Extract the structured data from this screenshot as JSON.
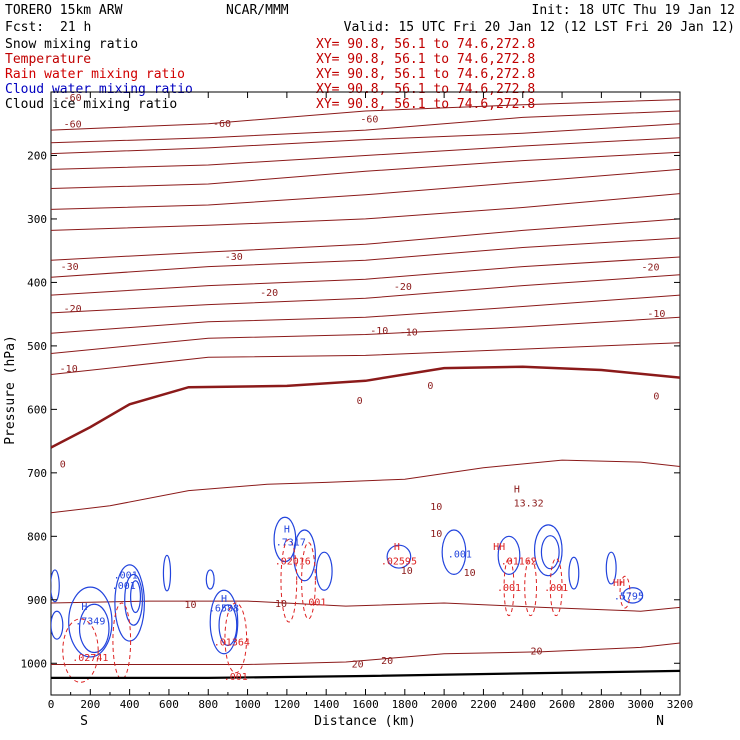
{
  "header": {
    "model": "TORERO  15km ARW",
    "center": "NCAR/MMM",
    "init": "Init: 18 UTC Thu 19 Jan 12",
    "fcst_label": "Fcst:",
    "fcst_value": "21 h",
    "valid": "Valid: 15 UTC Fri 20 Jan 12 (12 LST Fri 20 Jan 12)"
  },
  "fields": [
    {
      "name": "Snow mixing ratio",
      "xy": "XY=  90.8, 56.1 to  74.6,272.8",
      "color": "#000000"
    },
    {
      "name": "Temperature",
      "xy": "XY=  90.8, 56.1 to  74.6,272.8",
      "color": "#c00000"
    },
    {
      "name": "Rain water mixing ratio",
      "xy": "XY=  90.8, 56.1 to  74.6,272.8",
      "color": "#d00000"
    },
    {
      "name": "Cloud water mixing ratio",
      "xy": "XY=  90.8, 56.1 to  74.6,272.8",
      "color": "#0000c0"
    },
    {
      "name": "Cloud ice mixing ratio",
      "xy": "XY=  90.8, 56.1 to  74.6,272.8",
      "color": "#000000"
    }
  ],
  "colors": {
    "temperature": "#8b1a1a",
    "rain": "#dd2222",
    "cloud_water": "#2244dd",
    "terrain": "#000000"
  },
  "chart_data": {
    "type": "cross-section contour",
    "xlabel": "Distance (km)",
    "ylabel": "Pressure (hPa)",
    "xlim": [
      0,
      3200
    ],
    "ylim": [
      1050,
      100
    ],
    "x_ticks": [
      0,
      200,
      400,
      600,
      800,
      1000,
      1200,
      1400,
      1600,
      1800,
      2000,
      2200,
      2400,
      2600,
      2800,
      3000,
      3200
    ],
    "y_ticks": [
      200,
      300,
      400,
      500,
      600,
      700,
      800,
      900,
      1000
    ],
    "x_end_labels": {
      "left": "S",
      "right": "N"
    },
    "temperature_contours": [
      {
        "value": "-60",
        "points": [
          [
            0,
            160
          ],
          [
            800,
            150
          ],
          [
            1600,
            130
          ],
          [
            2400,
            120
          ],
          [
            3200,
            112
          ]
        ]
      },
      {
        "value": "-60",
        "points": [
          [
            0,
            180
          ],
          [
            800,
            172
          ],
          [
            1600,
            160
          ],
          [
            2400,
            140
          ],
          [
            3200,
            130
          ]
        ]
      },
      {
        "value": "-60",
        "points": [
          [
            0,
            197
          ],
          [
            800,
            188
          ],
          [
            1600,
            175
          ],
          [
            2400,
            165
          ],
          [
            3200,
            150
          ]
        ]
      },
      {
        "value": "-60",
        "points": [
          [
            0,
            222
          ],
          [
            800,
            215
          ],
          [
            1600,
            200
          ],
          [
            2400,
            185
          ],
          [
            3200,
            172
          ]
        ]
      },
      {
        "value": "-60",
        "points": [
          [
            0,
            252
          ],
          [
            800,
            245
          ],
          [
            1600,
            225
          ],
          [
            2400,
            208
          ],
          [
            3200,
            195
          ]
        ]
      },
      {
        "value": "-50",
        "points": [
          [
            0,
            285
          ],
          [
            800,
            278
          ],
          [
            1600,
            262
          ],
          [
            2400,
            242
          ],
          [
            3200,
            222
          ]
        ]
      },
      {
        "value": "-40",
        "points": [
          [
            0,
            318
          ],
          [
            800,
            310
          ],
          [
            1600,
            300
          ],
          [
            2400,
            282
          ],
          [
            3200,
            260
          ]
        ]
      },
      {
        "value": "-30",
        "points": [
          [
            0,
            365
          ],
          [
            800,
            352
          ],
          [
            1600,
            340
          ],
          [
            2400,
            318
          ],
          [
            3200,
            300
          ]
        ]
      },
      {
        "value": "-30",
        "points": [
          [
            0,
            392
          ],
          [
            800,
            375
          ],
          [
            1600,
            365
          ],
          [
            2400,
            345
          ],
          [
            3200,
            330
          ]
        ]
      },
      {
        "value": "-20",
        "points": [
          [
            0,
            420
          ],
          [
            800,
            405
          ],
          [
            1600,
            395
          ],
          [
            2400,
            375
          ],
          [
            3200,
            360
          ]
        ]
      },
      {
        "value": "-20",
        "points": [
          [
            0,
            448
          ],
          [
            800,
            435
          ],
          [
            1600,
            425
          ],
          [
            2400,
            405
          ],
          [
            3200,
            388
          ]
        ]
      },
      {
        "value": "-10",
        "points": [
          [
            0,
            480
          ],
          [
            800,
            462
          ],
          [
            1600,
            455
          ],
          [
            2400,
            438
          ],
          [
            3200,
            420
          ]
        ]
      },
      {
        "value": "-10",
        "points": [
          [
            0,
            512
          ],
          [
            800,
            488
          ],
          [
            1600,
            482
          ],
          [
            2400,
            470
          ],
          [
            3200,
            455
          ]
        ]
      },
      {
        "value": "-10",
        "points": [
          [
            0,
            545
          ],
          [
            800,
            518
          ],
          [
            1600,
            515
          ],
          [
            2400,
            505
          ],
          [
            3200,
            495
          ]
        ]
      },
      {
        "value": "0",
        "points": [
          [
            0,
            660
          ],
          [
            200,
            628
          ],
          [
            400,
            592
          ],
          [
            700,
            565
          ],
          [
            1200,
            563
          ],
          [
            1600,
            555
          ],
          [
            2000,
            535
          ],
          [
            2400,
            533
          ],
          [
            2800,
            538
          ],
          [
            3200,
            550
          ]
        ]
      },
      {
        "value": "10",
        "points": [
          [
            0,
            763
          ],
          [
            300,
            752
          ],
          [
            700,
            728
          ],
          [
            1100,
            718
          ],
          [
            1400,
            715
          ],
          [
            1800,
            710
          ],
          [
            2200,
            692
          ],
          [
            2600,
            680
          ],
          [
            3000,
            683
          ],
          [
            3200,
            690
          ]
        ]
      },
      {
        "value": "10",
        "points": [
          [
            0,
            905
          ],
          [
            500,
            902
          ],
          [
            1000,
            902
          ],
          [
            1500,
            910
          ],
          [
            2000,
            905
          ],
          [
            2500,
            912
          ],
          [
            3000,
            918
          ],
          [
            3200,
            912
          ]
        ]
      },
      {
        "value": "20",
        "points": [
          [
            0,
            1002
          ],
          [
            1000,
            1002
          ],
          [
            1500,
            998
          ],
          [
            2000,
            985
          ],
          [
            2500,
            982
          ],
          [
            3000,
            975
          ],
          [
            3200,
            968
          ]
        ]
      }
    ],
    "terrain_pressure": [
      [
        0,
        1023
      ],
      [
        800,
        1023
      ],
      [
        1600,
        1020
      ],
      [
        2400,
        1016
      ],
      [
        3200,
        1012
      ]
    ],
    "contour_labels": [
      {
        "text": "-60",
        "x": 110,
        "y": 108,
        "color": "temperature"
      },
      {
        "text": "-60",
        "x": 110,
        "y": 150,
        "color": "temperature"
      },
      {
        "text": "-60",
        "x": 870,
        "y": 149,
        "color": "temperature"
      },
      {
        "text": "-60",
        "x": 1620,
        "y": 142,
        "color": "temperature"
      },
      {
        "text": "-30",
        "x": 95,
        "y": 374,
        "color": "temperature"
      },
      {
        "text": "-30",
        "x": 930,
        "y": 358,
        "color": "temperature"
      },
      {
        "text": "-20",
        "x": 3050,
        "y": 375,
        "color": "temperature"
      },
      {
        "text": "-20",
        "x": 110,
        "y": 440,
        "color": "temperature"
      },
      {
        "text": "-20",
        "x": 1110,
        "y": 415,
        "color": "temperature"
      },
      {
        "text": "-20",
        "x": 1790,
        "y": 406,
        "color": "temperature"
      },
      {
        "text": "-10",
        "x": 3080,
        "y": 448,
        "color": "temperature"
      },
      {
        "text": "-10",
        "x": 1670,
        "y": 475,
        "color": "temperature"
      },
      {
        "text": "-10",
        "x": 1820,
        "y": 477,
        "color": "temperature"
      },
      {
        "text": "-10",
        "x": 90,
        "y": 535,
        "color": "temperature"
      },
      {
        "text": "0",
        "x": 1930,
        "y": 562,
        "color": "temperature"
      },
      {
        "text": "0",
        "x": 1570,
        "y": 585,
        "color": "temperature"
      },
      {
        "text": "0",
        "x": 3080,
        "y": 578,
        "color": "temperature"
      },
      {
        "text": "0",
        "x": 60,
        "y": 685,
        "color": "temperature"
      },
      {
        "text": "10",
        "x": 1960,
        "y": 752,
        "color": "temperature"
      },
      {
        "text": "10",
        "x": 1960,
        "y": 795,
        "color": "temperature"
      },
      {
        "text": "10",
        "x": 1810,
        "y": 853,
        "color": "temperature"
      },
      {
        "text": "10",
        "x": 2130,
        "y": 856,
        "color": "temperature"
      },
      {
        "text": "10",
        "x": 710,
        "y": 907,
        "color": "temperature"
      },
      {
        "text": "10",
        "x": 1170,
        "y": 905,
        "color": "temperature"
      },
      {
        "text": "20",
        "x": 1560,
        "y": 1000,
        "color": "temperature"
      },
      {
        "text": "20",
        "x": 1710,
        "y": 995,
        "color": "temperature"
      },
      {
        "text": "20",
        "x": 2470,
        "y": 980,
        "color": "temperature"
      },
      {
        "text": "H",
        "x": 2370,
        "y": 725,
        "color": "temperature"
      },
      {
        "text": "13.32",
        "x": 2430,
        "y": 747,
        "color": "temperature"
      },
      {
        "text": "H",
        "x": 1200,
        "y": 788,
        "color": "cloud_water"
      },
      {
        "text": ".7317",
        "x": 1220,
        "y": 808,
        "color": "cloud_water"
      },
      {
        "text": ".02016",
        "x": 1230,
        "y": 838,
        "color": "rain"
      },
      {
        "text": ".001",
        "x": 380,
        "y": 860,
        "color": "cloud_water"
      },
      {
        "text": ".001",
        "x": 2080,
        "y": 827,
        "color": "cloud_water"
      },
      {
        "text": ".02595",
        "x": 1770,
        "y": 838,
        "color": "rain"
      },
      {
        "text": "H",
        "x": 1760,
        "y": 815,
        "color": "rain"
      },
      {
        "text": "HH",
        "x": 2280,
        "y": 815,
        "color": "rain"
      },
      {
        "text": ".01162",
        "x": 2380,
        "y": 838,
        "color": "rain"
      },
      {
        "text": ".001",
        "x": 370,
        "y": 877,
        "color": "cloud_water"
      },
      {
        "text": ".001",
        "x": 1340,
        "y": 903,
        "color": "rain"
      },
      {
        "text": ".001",
        "x": 2330,
        "y": 880,
        "color": "rain"
      },
      {
        "text": ".001",
        "x": 2570,
        "y": 880,
        "color": "rain"
      },
      {
        "text": "HH",
        "x": 2890,
        "y": 872,
        "color": "rain"
      },
      {
        "text": ".5795",
        "x": 2940,
        "y": 893,
        "color": "cloud_water"
      },
      {
        "text": "H",
        "x": 170,
        "y": 910,
        "color": "cloud_water"
      },
      {
        "text": ".7349",
        "x": 200,
        "y": 933,
        "color": "cloud_water"
      },
      {
        "text": ".02741",
        "x": 200,
        "y": 990,
        "color": "rain"
      },
      {
        "text": "H",
        "x": 880,
        "y": 897,
        "color": "cloud_water"
      },
      {
        "text": ".6588",
        "x": 880,
        "y": 912,
        "color": "cloud_water"
      },
      {
        "text": ".01364",
        "x": 920,
        "y": 966,
        "color": "rain"
      },
      {
        "text": ".001",
        "x": 940,
        "y": 1020,
        "color": "rain"
      }
    ],
    "cloud_water_contours": [
      {
        "cx": 20,
        "cy": 878,
        "rx": 22,
        "ry": 25
      },
      {
        "cx": 30,
        "cy": 940,
        "rx": 30,
        "ry": 22
      },
      {
        "cx": 200,
        "cy": 935,
        "rx": 110,
        "ry": 55
      },
      {
        "cx": 220,
        "cy": 945,
        "rx": 75,
        "ry": 38
      },
      {
        "cx": 400,
        "cy": 905,
        "rx": 75,
        "ry": 60
      },
      {
        "cx": 420,
        "cy": 900,
        "rx": 45,
        "ry": 40
      },
      {
        "cx": 430,
        "cy": 895,
        "rx": 25,
        "ry": 25
      },
      {
        "cx": 590,
        "cy": 858,
        "rx": 18,
        "ry": 28
      },
      {
        "cx": 810,
        "cy": 868,
        "rx": 20,
        "ry": 15
      },
      {
        "cx": 880,
        "cy": 935,
        "rx": 70,
        "ry": 50
      },
      {
        "cx": 900,
        "cy": 940,
        "rx": 45,
        "ry": 32
      },
      {
        "cx": 1190,
        "cy": 805,
        "rx": 55,
        "ry": 35
      },
      {
        "cx": 1290,
        "cy": 830,
        "rx": 55,
        "ry": 40
      },
      {
        "cx": 1390,
        "cy": 855,
        "rx": 40,
        "ry": 30
      },
      {
        "cx": 1770,
        "cy": 832,
        "rx": 60,
        "ry": 18
      },
      {
        "cx": 2050,
        "cy": 825,
        "rx": 60,
        "ry": 35
      },
      {
        "cx": 2330,
        "cy": 830,
        "rx": 55,
        "ry": 30
      },
      {
        "cx": 2530,
        "cy": 822,
        "rx": 70,
        "ry": 40
      },
      {
        "cx": 2540,
        "cy": 825,
        "rx": 45,
        "ry": 26
      },
      {
        "cx": 2660,
        "cy": 858,
        "rx": 25,
        "ry": 25
      },
      {
        "cx": 2850,
        "cy": 850,
        "rx": 25,
        "ry": 25
      },
      {
        "cx": 2960,
        "cy": 893,
        "rx": 50,
        "ry": 12
      }
    ],
    "rain_contours": [
      {
        "cx": 150,
        "cy": 980,
        "rx": 90,
        "ry": 50
      },
      {
        "cx": 360,
        "cy": 965,
        "rx": 45,
        "ry": 60
      },
      {
        "cx": 940,
        "cy": 960,
        "rx": 55,
        "ry": 55
      },
      {
        "cx": 1210,
        "cy": 870,
        "rx": 40,
        "ry": 65
      },
      {
        "cx": 1310,
        "cy": 870,
        "rx": 35,
        "ry": 60
      },
      {
        "cx": 2330,
        "cy": 880,
        "rx": 25,
        "ry": 45
      },
      {
        "cx": 2440,
        "cy": 880,
        "rx": 30,
        "ry": 45
      },
      {
        "cx": 2570,
        "cy": 880,
        "rx": 30,
        "ry": 45
      },
      {
        "cx": 2920,
        "cy": 888,
        "rx": 25,
        "ry": 25
      }
    ]
  }
}
